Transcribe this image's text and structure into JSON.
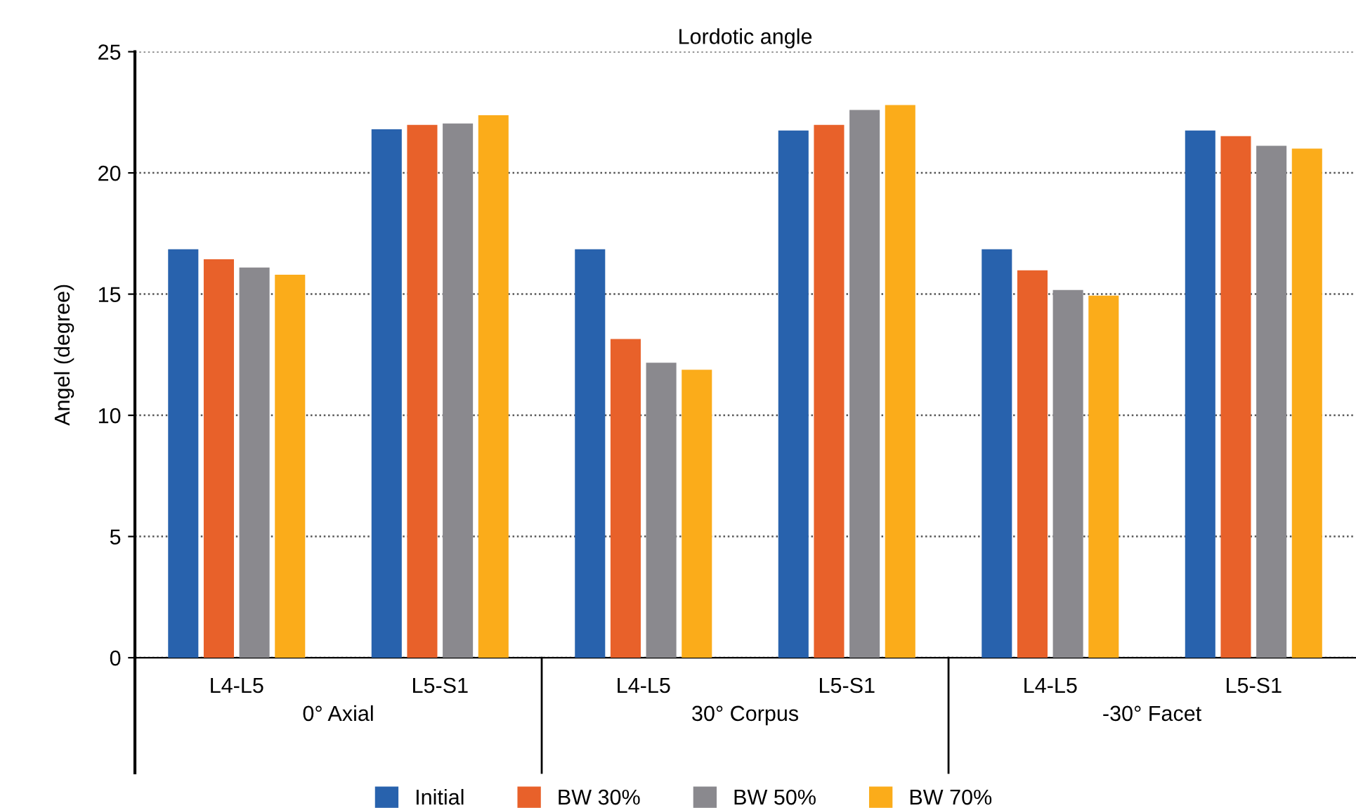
{
  "chart_data": {
    "type": "bar",
    "title": "Lordotic angle",
    "ylabel": "Angel (degree)",
    "categories": [
      "L4-L5",
      "L5-S1",
      "L4-L5",
      "L5-S1",
      "L4-L5",
      "L5-S1"
    ],
    "annotations": [
      "0° Axial",
      "30° Corpus",
      "-30° Facet"
    ],
    "series": [
      {
        "name": "Initial",
        "color": "#2862ad",
        "values": [
          16.85,
          21.8,
          16.85,
          21.75,
          16.85,
          21.75
        ]
      },
      {
        "name": "BW 30%",
        "color": "#e8612a",
        "values": [
          16.44,
          21.98,
          13.15,
          21.98,
          15.98,
          21.52
        ]
      },
      {
        "name": "BW 50%",
        "color": "#8a898e",
        "values": [
          16.1,
          22.04,
          12.17,
          22.6,
          15.17,
          21.12
        ]
      },
      {
        "name": "BW 70%",
        "color": "#fbac1a",
        "values": [
          15.8,
          22.38,
          11.88,
          22.8,
          14.94,
          21.0
        ]
      }
    ],
    "ylim": [
      0,
      25
    ],
    "yticks": [
      0,
      5,
      10,
      15,
      20,
      25
    ],
    "grid": "y",
    "legend": "bottom"
  }
}
